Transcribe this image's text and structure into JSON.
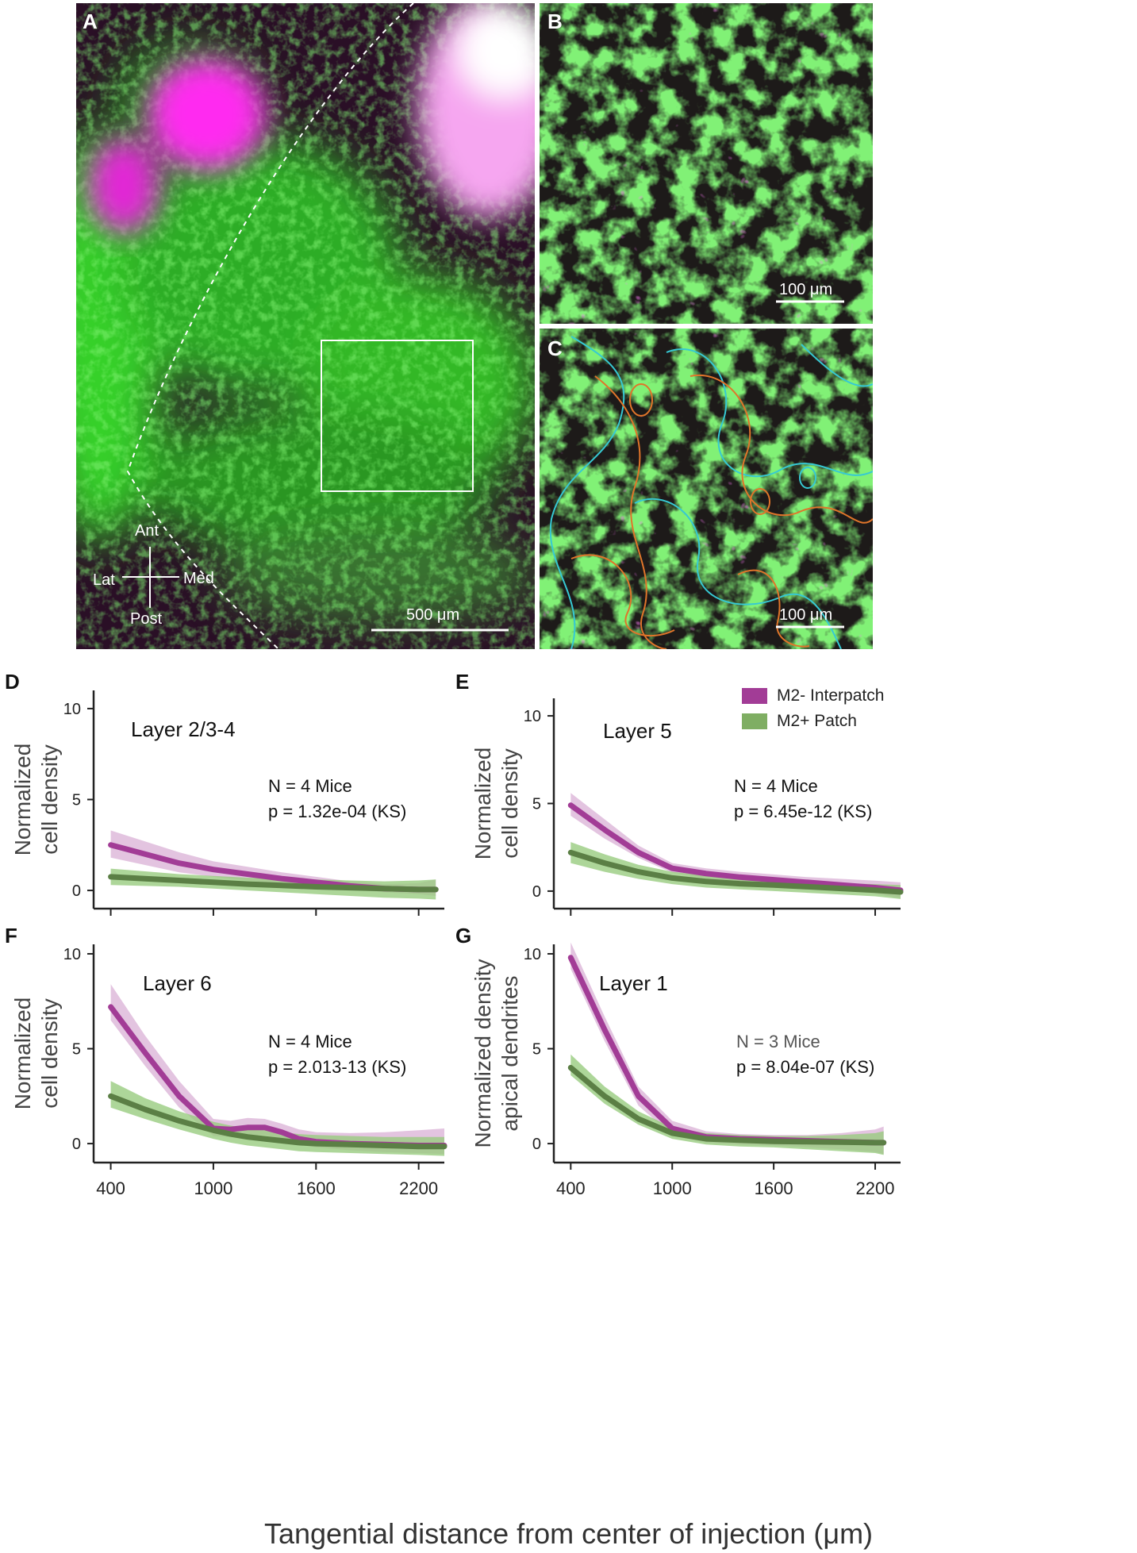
{
  "colors": {
    "magenta_line": "#a23c96",
    "magenta_band": "#d9b0d6",
    "green_line": "#5b7f45",
    "green_band": "#99cc80",
    "micro_bg": "#2a0f26",
    "micro_green": "#39e62b",
    "micro_magenta": "#ff2cf0",
    "contour_cyan": "#36c9d3",
    "contour_orange": "#e0752a"
  },
  "panel_a": {
    "letter": "A",
    "compass": {
      "ant": "Ant",
      "post": "Post",
      "lat": "Lat",
      "med": "Med"
    },
    "scalebar": "500 μm"
  },
  "panel_b": {
    "letter": "B",
    "scalebar": "100 μm"
  },
  "panel_c": {
    "letter": "C",
    "scalebar": "100 μm"
  },
  "legend": {
    "series": [
      "M2- Interpatch",
      "M2+ Patch"
    ]
  },
  "shared_xlabel": "Tangential distance from center of injection (μm)",
  "chart_data": [
    {
      "id": "D",
      "type": "line",
      "title": "Layer 2/3-4",
      "ylabel": [
        "Normalized",
        "cell density"
      ],
      "annotation": [
        "N = 4 Mice",
        "p = 1.32e-04 (KS)"
      ],
      "xlim": [
        300,
        2350
      ],
      "ylim": [
        -1,
        11
      ],
      "yticks": [
        0,
        5,
        10
      ],
      "xticks": [
        400,
        1000,
        1600,
        2200
      ],
      "x": [
        400,
        600,
        800,
        1000,
        1200,
        1400,
        1600,
        1800,
        2000,
        2200,
        2300
      ],
      "series": [
        {
          "name": "M2- Interpatch",
          "values": [
            2.5,
            2.0,
            1.5,
            1.15,
            0.9,
            0.65,
            0.45,
            0.25,
            0.1,
            0.05,
            0.05
          ],
          "lower": [
            1.8,
            1.4,
            1.0,
            0.75,
            0.55,
            0.35,
            0.2,
            0.05,
            -0.1,
            -0.2,
            -0.3
          ],
          "upper": [
            3.3,
            2.7,
            2.1,
            1.6,
            1.3,
            1.0,
            0.75,
            0.5,
            0.35,
            0.4,
            0.6
          ]
        },
        {
          "name": "M2+ Patch",
          "values": [
            0.75,
            0.65,
            0.55,
            0.45,
            0.35,
            0.28,
            0.2,
            0.15,
            0.1,
            0.05,
            0.05
          ],
          "lower": [
            0.3,
            0.25,
            0.2,
            0.1,
            0.0,
            -0.1,
            -0.2,
            -0.3,
            -0.4,
            -0.45,
            -0.5
          ],
          "upper": [
            1.2,
            1.05,
            0.9,
            0.8,
            0.7,
            0.65,
            0.6,
            0.55,
            0.5,
            0.55,
            0.6
          ]
        }
      ]
    },
    {
      "id": "E",
      "type": "line",
      "title": "Layer 5",
      "ylabel": [
        "Normalized",
        "cell density"
      ],
      "annotation": [
        "N = 4 Mice",
        "p = 6.45e-12 (KS)"
      ],
      "xlim": [
        300,
        2350
      ],
      "ylim": [
        -1,
        11
      ],
      "yticks": [
        0,
        5,
        10
      ],
      "xticks": [
        400,
        1000,
        1600,
        2200
      ],
      "x": [
        400,
        600,
        800,
        1000,
        1200,
        1400,
        1600,
        1800,
        2000,
        2200,
        2350
      ],
      "series": [
        {
          "name": "M2- Interpatch",
          "values": [
            4.9,
            3.5,
            2.2,
            1.3,
            1.0,
            0.8,
            0.65,
            0.5,
            0.35,
            0.2,
            0.05
          ],
          "lower": [
            4.3,
            3.0,
            1.9,
            1.05,
            0.75,
            0.55,
            0.4,
            0.25,
            0.05,
            -0.15,
            -0.4
          ],
          "upper": [
            5.6,
            4.1,
            2.6,
            1.6,
            1.3,
            1.1,
            0.95,
            0.8,
            0.7,
            0.6,
            0.5
          ]
        },
        {
          "name": "M2+ Patch",
          "values": [
            2.2,
            1.6,
            1.1,
            0.75,
            0.55,
            0.42,
            0.35,
            0.25,
            0.15,
            0.05,
            -0.05
          ],
          "lower": [
            1.6,
            1.1,
            0.7,
            0.4,
            0.2,
            0.1,
            0.0,
            -0.1,
            -0.2,
            -0.3,
            -0.45
          ],
          "upper": [
            2.8,
            2.1,
            1.5,
            1.1,
            0.9,
            0.75,
            0.65,
            0.55,
            0.45,
            0.4,
            0.35
          ]
        }
      ]
    },
    {
      "id": "F",
      "type": "line",
      "title": "Layer 6",
      "ylabel": [
        "Normalized",
        "cell density"
      ],
      "annotation": [
        "N = 4 Mice",
        "p = 2.013-13 (KS)"
      ],
      "xlim": [
        300,
        2350
      ],
      "ylim": [
        -1,
        10.5
      ],
      "yticks": [
        0,
        5,
        10
      ],
      "xticks": [
        400,
        1000,
        1600,
        2200
      ],
      "xticklabels": [
        "400",
        "1000",
        "1600",
        "2200"
      ],
      "x": [
        400,
        600,
        800,
        1000,
        1100,
        1200,
        1300,
        1400,
        1500,
        1600,
        1800,
        2000,
        2200,
        2350
      ],
      "series": [
        {
          "name": "M2- Interpatch",
          "values": [
            7.2,
            4.8,
            2.5,
            0.8,
            0.75,
            0.85,
            0.85,
            0.6,
            0.25,
            0.1,
            0.0,
            -0.05,
            -0.1,
            -0.1
          ],
          "lower": [
            6.5,
            4.1,
            1.9,
            0.4,
            0.35,
            0.45,
            0.45,
            0.25,
            -0.05,
            -0.2,
            -0.35,
            -0.45,
            -0.5,
            -0.55
          ],
          "upper": [
            8.4,
            5.7,
            3.3,
            1.3,
            1.2,
            1.35,
            1.3,
            1.05,
            0.75,
            0.6,
            0.55,
            0.6,
            0.7,
            0.8
          ]
        },
        {
          "name": "M2+ Patch",
          "values": [
            2.5,
            1.8,
            1.2,
            0.7,
            0.5,
            0.35,
            0.25,
            0.15,
            0.05,
            0.0,
            -0.05,
            -0.1,
            -0.15,
            -0.15
          ],
          "lower": [
            1.9,
            1.3,
            0.75,
            0.25,
            0.05,
            -0.1,
            -0.2,
            -0.3,
            -0.4,
            -0.45,
            -0.5,
            -0.55,
            -0.6,
            -0.65
          ],
          "upper": [
            3.3,
            2.4,
            1.7,
            1.15,
            0.95,
            0.8,
            0.7,
            0.6,
            0.5,
            0.45,
            0.4,
            0.35,
            0.35,
            0.35
          ]
        }
      ]
    },
    {
      "id": "G",
      "type": "line",
      "title": "Layer 1",
      "ylabel": [
        "Normalized density",
        "apical dendrites"
      ],
      "annotation": [
        "N = 3 Mice",
        "p = 8.04e-07 (KS)"
      ],
      "xlim": [
        300,
        2350
      ],
      "ylim": [
        -1,
        10.5
      ],
      "yticks": [
        0,
        5,
        10
      ],
      "xticks": [
        400,
        1000,
        1600,
        2200
      ],
      "xticklabels": [
        "400",
        "1000",
        "1600",
        "2200"
      ],
      "x": [
        400,
        600,
        800,
        1000,
        1200,
        1400,
        1600,
        1800,
        2000,
        2200,
        2250
      ],
      "series": [
        {
          "name": "M2- Interpatch",
          "values": [
            9.8,
            6.0,
            2.5,
            0.8,
            0.35,
            0.25,
            0.2,
            0.15,
            0.1,
            0.05,
            0.05
          ],
          "lower": [
            9.2,
            5.4,
            2.0,
            0.45,
            0.05,
            -0.05,
            -0.1,
            -0.2,
            -0.3,
            -0.45,
            -0.55
          ],
          "upper": [
            10.6,
            6.7,
            3.0,
            1.2,
            0.65,
            0.5,
            0.45,
            0.45,
            0.55,
            0.75,
            0.9
          ]
        },
        {
          "name": "M2+ Patch",
          "values": [
            4.0,
            2.5,
            1.3,
            0.55,
            0.25,
            0.18,
            0.12,
            0.1,
            0.08,
            0.05,
            0.05
          ],
          "lower": [
            3.6,
            2.1,
            1.0,
            0.25,
            -0.05,
            -0.15,
            -0.2,
            -0.3,
            -0.4,
            -0.5,
            -0.6
          ],
          "upper": [
            4.7,
            3.0,
            1.7,
            0.85,
            0.55,
            0.45,
            0.4,
            0.4,
            0.45,
            0.55,
            0.65
          ]
        }
      ]
    }
  ]
}
